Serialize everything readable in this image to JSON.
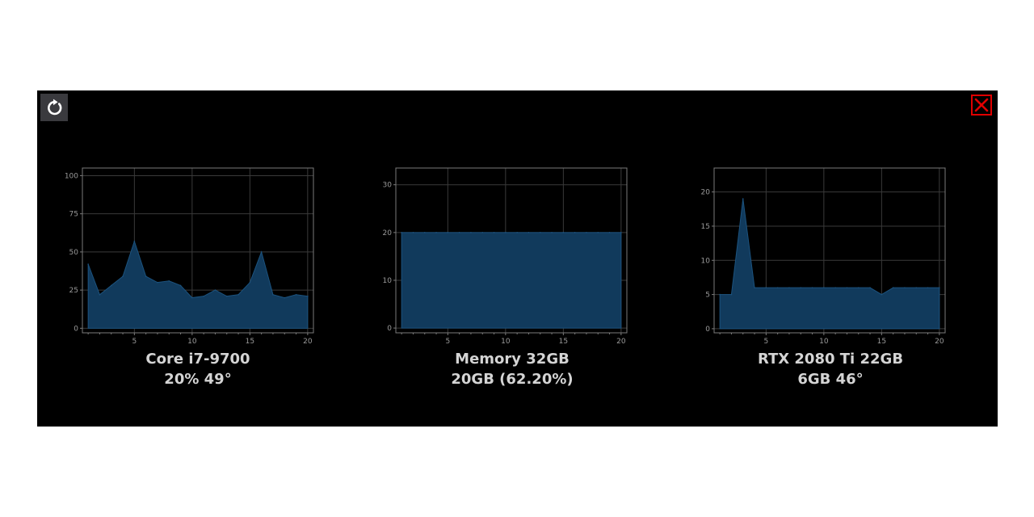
{
  "colors": {
    "panel_bg": "#000000",
    "fill": "#113a5c",
    "stroke": "#1b527e",
    "grid": "#3a3a3a",
    "axis": "#7a7a7a",
    "close_red": "#e00000",
    "button_bg": "#3a3a3e"
  },
  "toolbar": {
    "refresh_icon": "refresh-icon",
    "close_icon": "close-icon"
  },
  "monitors": [
    {
      "name": "Core i7-9700",
      "stat": "20% 49°"
    },
    {
      "name": "Memory 32GB",
      "stat": "20GB (62.20%)"
    },
    {
      "name": "RTX 2080 Ti 22GB",
      "stat": "6GB 46°"
    }
  ],
  "chart_data": [
    {
      "type": "area",
      "x": [
        1,
        2,
        3,
        4,
        5,
        6,
        7,
        8,
        9,
        10,
        11,
        12,
        13,
        14,
        15,
        16,
        17,
        18,
        19,
        20
      ],
      "series": [
        {
          "values": [
            42,
            22,
            28,
            34,
            57,
            34,
            30,
            31,
            28,
            20,
            21,
            25,
            21,
            22,
            30,
            50,
            22,
            20,
            22,
            21
          ]
        }
      ],
      "xlim": [
        0.5,
        20.5
      ],
      "ylim": [
        -3,
        105
      ],
      "xticks": [
        5,
        10,
        15,
        20
      ],
      "yticks": [
        0,
        25,
        50,
        75,
        100
      ],
      "grid": true
    },
    {
      "type": "area",
      "x": [
        1,
        2,
        3,
        4,
        5,
        6,
        7,
        8,
        9,
        10,
        11,
        12,
        13,
        14,
        15,
        16,
        17,
        18,
        19,
        20
      ],
      "series": [
        {
          "values": [
            20,
            20,
            20,
            20,
            20,
            20,
            20,
            20,
            20,
            20,
            20,
            20,
            20,
            20,
            20,
            20,
            20,
            20,
            20,
            20
          ]
        }
      ],
      "xlim": [
        0.5,
        20.5
      ],
      "ylim": [
        -1,
        33.5
      ],
      "xticks": [
        5,
        10,
        15,
        20
      ],
      "yticks": [
        0,
        10,
        20,
        30
      ],
      "grid": true
    },
    {
      "type": "area",
      "x": [
        1,
        2,
        3,
        4,
        5,
        6,
        7,
        8,
        9,
        10,
        11,
        12,
        13,
        14,
        15,
        16,
        17,
        18,
        19,
        20
      ],
      "series": [
        {
          "values": [
            5,
            5,
            19,
            6,
            6,
            6,
            6,
            6,
            6,
            6,
            6,
            6,
            6,
            6,
            5,
            6,
            6,
            6,
            6,
            6
          ]
        }
      ],
      "xlim": [
        0.5,
        20.5
      ],
      "ylim": [
        -0.6,
        23.5
      ],
      "xticks": [
        5,
        10,
        15,
        20
      ],
      "yticks": [
        0,
        5,
        10,
        15,
        20
      ],
      "grid": true
    }
  ]
}
